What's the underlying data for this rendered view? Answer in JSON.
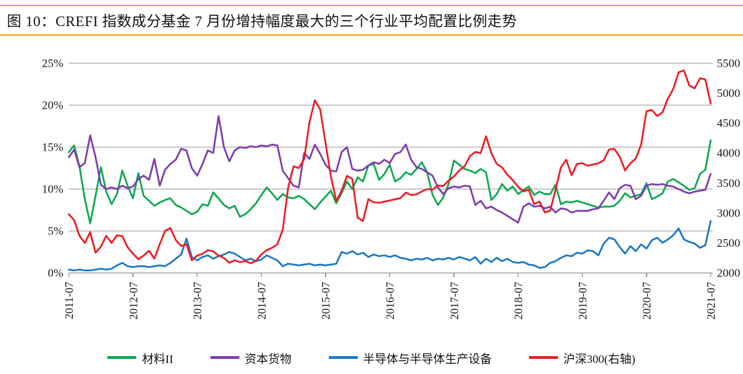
{
  "header": {
    "title": "图  10：CREFI 指数成分基金 7 月份增持幅度最大的三个行业平均配置比例走势",
    "rule_color": "#f2a400"
  },
  "chart_data": {
    "type": "line",
    "title": "CREFI指数成分基金7月份增持幅度最大的三个行业平均配置比例走势",
    "x_tick_labels": [
      "2011-07",
      "2012-07",
      "2013-07",
      "2014-07",
      "2015-07",
      "2016-07",
      "2017-07",
      "2018-07",
      "2019-07",
      "2020-07",
      "2021-07"
    ],
    "x_start": "2011-07",
    "x_step_months": 1,
    "grid": "horizontal",
    "grid_color": "#9a9a9a",
    "axis_color": "#7f7f7f",
    "left_axis": {
      "min": 0,
      "max": 25,
      "tick_values": [
        0,
        5,
        10,
        15,
        20,
        25
      ],
      "tick_labels": [
        "0%",
        "5%",
        "10%",
        "15%",
        "20%",
        "25%"
      ]
    },
    "right_axis": {
      "min": 2000,
      "max": 5500,
      "tick_values": [
        2000,
        2500,
        3000,
        3500,
        4000,
        4500,
        5000,
        5500
      ],
      "tick_labels": [
        "2000",
        "2500",
        "3000",
        "3500",
        "4000",
        "4500",
        "5000",
        "5500"
      ]
    },
    "legend_position": "bottom",
    "series": [
      {
        "name": "材料II",
        "color": "#0ca750",
        "axis": "left",
        "unit": "%",
        "values": [
          14.4,
          15.2,
          12.7,
          8.8,
          5.9,
          9.2,
          12.6,
          9.7,
          8.2,
          9.4,
          12.2,
          10.4,
          8.9,
          11.9,
          9.2,
          8.6,
          8.0,
          8.4,
          8.7,
          8.9,
          8.1,
          7.8,
          7.4,
          7.0,
          7.3,
          8.2,
          8.0,
          9.6,
          8.9,
          8.1,
          7.7,
          8.0,
          6.7,
          7.0,
          7.6,
          8.3,
          9.3,
          10.2,
          9.5,
          8.7,
          9.4,
          9.0,
          8.9,
          9.2,
          8.8,
          8.2,
          7.6,
          8.4,
          9.1,
          9.8,
          8.3,
          9.5,
          10.9,
          10.0,
          11.4,
          10.9,
          12.8,
          13.0,
          11.1,
          11.8,
          12.9,
          10.9,
          11.3,
          12.0,
          11.7,
          12.4,
          13.2,
          12.0,
          9.3,
          8.1,
          9.0,
          10.6,
          13.4,
          12.9,
          12.4,
          12.2,
          11.9,
          12.4,
          12.0,
          8.7,
          9.4,
          10.6,
          9.8,
          10.3,
          9.4,
          9.9,
          10.3,
          9.3,
          9.7,
          9.4,
          9.4,
          10.5,
          8.2,
          8.5,
          8.4,
          8.6,
          8.4,
          8.2,
          8.0,
          7.8,
          7.9,
          7.9,
          8.0,
          8.6,
          9.5,
          9.0,
          9.2,
          9.4,
          10.7,
          8.8,
          9.1,
          9.5,
          10.9,
          11.2,
          10.8,
          10.4,
          9.9,
          10.1,
          11.8,
          12.3,
          15.8
        ]
      },
      {
        "name": "资本货物",
        "color": "#7d3cae",
        "axis": "left",
        "unit": "%",
        "values": [
          13.8,
          14.7,
          12.6,
          13.1,
          16.4,
          13.8,
          10.5,
          10.0,
          10.2,
          10.0,
          10.4,
          10.1,
          10.3,
          11.2,
          11.6,
          11.1,
          13.6,
          10.4,
          12.3,
          13.0,
          13.5,
          14.8,
          14.6,
          12.5,
          11.6,
          13.0,
          14.6,
          14.3,
          18.7,
          15.0,
          13.3,
          14.6,
          15.0,
          14.9,
          15.1,
          15.0,
          15.2,
          15.1,
          15.3,
          15.2,
          12.2,
          11.3,
          10.4,
          10.2,
          14.3,
          13.6,
          15.3,
          14.2,
          12.9,
          12.2,
          12.1,
          14.4,
          15.0,
          12.4,
          12.2,
          12.3,
          12.8,
          13.2,
          13.0,
          13.5,
          13.1,
          14.2,
          14.4,
          15.3,
          13.5,
          12.6,
          12.4,
          12.0,
          11.6,
          10.2,
          9.4,
          10.1,
          10.3,
          10.2,
          10.4,
          10.3,
          8.1,
          8.6,
          7.7,
          7.9,
          7.5,
          7.2,
          6.8,
          6.4,
          6.0,
          7.9,
          8.3,
          7.9,
          8.0,
          7.7,
          7.9,
          7.2,
          7.7,
          7.6,
          7.2,
          7.4,
          7.4,
          7.4,
          7.6,
          7.7,
          8.6,
          9.6,
          8.8,
          10.1,
          10.5,
          10.4,
          8.8,
          9.2,
          10.4,
          10.6,
          10.5,
          10.6,
          10.4,
          10.3,
          10.0,
          9.7,
          9.5,
          9.7,
          9.8,
          9.9,
          11.8
        ]
      },
      {
        "name": "半导体与半导体生产设备",
        "color": "#1b78c4",
        "axis": "left",
        "unit": "%",
        "values": [
          0.4,
          0.3,
          0.4,
          0.3,
          0.3,
          0.4,
          0.5,
          0.4,
          0.5,
          0.9,
          1.2,
          0.8,
          0.7,
          0.8,
          0.8,
          0.7,
          0.8,
          0.9,
          0.8,
          1.2,
          1.7,
          2.2,
          4.1,
          1.9,
          1.5,
          1.9,
          2.1,
          1.7,
          2.0,
          2.2,
          2.5,
          2.3,
          1.9,
          1.5,
          1.7,
          1.4,
          1.6,
          2.1,
          1.8,
          1.5,
          0.8,
          1.1,
          1.0,
          0.9,
          1.0,
          1.1,
          0.9,
          1.0,
          0.9,
          1.0,
          1.1,
          2.5,
          2.3,
          2.6,
          2.2,
          2.4,
          1.9,
          2.2,
          2.0,
          2.1,
          1.9,
          2.1,
          1.8,
          1.7,
          1.5,
          1.7,
          1.6,
          1.8,
          1.5,
          1.7,
          1.6,
          1.8,
          1.6,
          1.9,
          1.7,
          1.5,
          1.9,
          1.1,
          1.7,
          1.3,
          1.8,
          1.4,
          1.7,
          1.3,
          1.2,
          1.3,
          1.0,
          0.9,
          0.6,
          0.7,
          1.2,
          1.4,
          1.8,
          2.1,
          2.0,
          2.4,
          2.3,
          2.7,
          2.6,
          2.1,
          3.5,
          4.2,
          4.0,
          3.1,
          2.3,
          3.2,
          2.6,
          3.4,
          2.9,
          3.9,
          4.2,
          3.6,
          4.0,
          4.5,
          5.3,
          4.0,
          3.7,
          3.5,
          3.0,
          3.3,
          6.2
        ]
      },
      {
        "name": "沪深300(右轴)",
        "color": "#ec1c24",
        "axis": "right",
        "unit": "points",
        "values": [
          2980,
          2880,
          2620,
          2500,
          2680,
          2340,
          2440,
          2620,
          2500,
          2630,
          2610,
          2430,
          2320,
          2230,
          2290,
          2370,
          2240,
          2480,
          2700,
          2750,
          2550,
          2450,
          2480,
          2210,
          2290,
          2320,
          2380,
          2360,
          2290,
          2250,
          2170,
          2210,
          2180,
          2200,
          2160,
          2200,
          2310,
          2380,
          2420,
          2480,
          2720,
          3420,
          3780,
          3750,
          3900,
          4520,
          4880,
          4730,
          4170,
          3610,
          3200,
          3370,
          3620,
          3570,
          2920,
          2870,
          3230,
          3180,
          3170,
          3190,
          3210,
          3230,
          3250,
          3340,
          3300,
          3310,
          3360,
          3400,
          3390,
          3460,
          3450,
          3540,
          3610,
          3710,
          3780,
          3950,
          4020,
          4000,
          4280,
          4000,
          3820,
          3760,
          3640,
          3550,
          3440,
          3360,
          3390,
          3150,
          3190,
          3010,
          3040,
          3390,
          3760,
          3890,
          3630,
          3820,
          3830,
          3790,
          3810,
          3830,
          3880,
          4060,
          4070,
          3940,
          3710,
          3830,
          3910,
          4140,
          4700,
          4720,
          4620,
          4680,
          4910,
          5070,
          5350,
          5380,
          5130,
          5080,
          5250,
          5230,
          4830
        ]
      }
    ]
  },
  "legend": {
    "note": "labels mirror chart_data.series names"
  }
}
